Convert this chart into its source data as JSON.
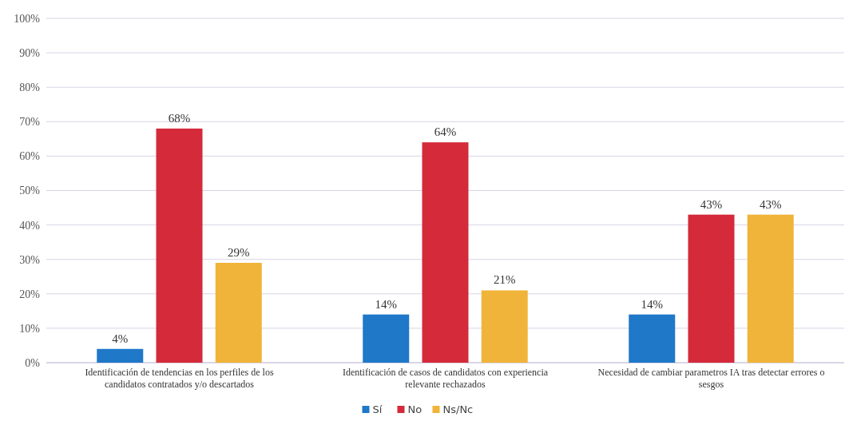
{
  "chart_data": {
    "type": "bar",
    "categories": [
      "Identificación de tendencias en los perfiles de los candidatos contratados y/o descartados",
      "Identificación de casos de candidatos con experiencia relevante rechazados",
      "Necesidad de cambiar parametros IA tras detectar errores o sesgos"
    ],
    "series": [
      {
        "name": "Sí",
        "color": "#1f78c8",
        "values": [
          4,
          14,
          14
        ],
        "value_labels": [
          "4%",
          "14%",
          "14%"
        ]
      },
      {
        "name": "No",
        "color": "#d42a3a",
        "values": [
          68,
          64,
          43
        ],
        "value_labels": [
          "68%",
          "64%",
          "43%"
        ]
      },
      {
        "name": "Ns/Nc",
        "color": "#f0b43a",
        "values": [
          29,
          21,
          43
        ],
        "value_labels": [
          "29%",
          "21%",
          "43%"
        ]
      }
    ],
    "ylim": [
      0,
      100
    ],
    "yticks": [
      {
        "value": 0,
        "label": "0%"
      },
      {
        "value": 10,
        "label": "10%"
      },
      {
        "value": 20,
        "label": "20%"
      },
      {
        "value": 30,
        "label": "30%"
      },
      {
        "value": 40,
        "label": "40%"
      },
      {
        "value": 50,
        "label": "50%"
      },
      {
        "value": 60,
        "label": "60%"
      },
      {
        "value": 70,
        "label": "70%"
      },
      {
        "value": 80,
        "label": "80%"
      },
      {
        "value": 90,
        "label": "90%"
      },
      {
        "value": 100,
        "label": "100%"
      }
    ],
    "grid": "y",
    "legend": "bottom"
  }
}
